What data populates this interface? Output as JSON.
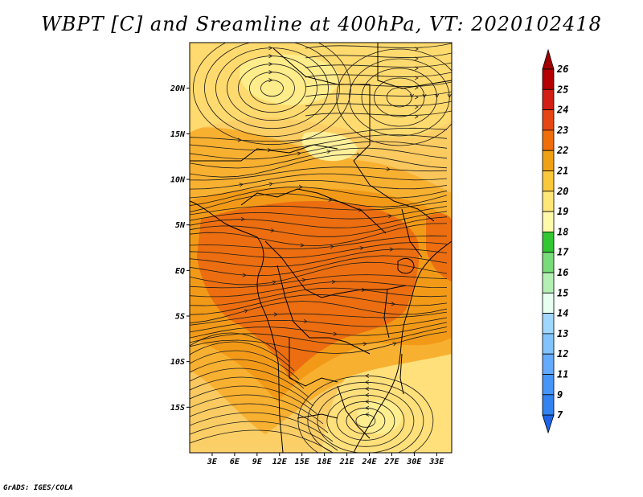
{
  "title": "WBPT [C] and Sreamline at 400hPa, VT: 2020102418",
  "credit": "GrADS: IGES/COLA",
  "map": {
    "lon_range": [
      0,
      35
    ],
    "lat_range": [
      -20,
      25
    ],
    "lat_ticks": [
      {
        "value": 20,
        "label": "20N"
      },
      {
        "value": 15,
        "label": "15N"
      },
      {
        "value": 10,
        "label": "10N"
      },
      {
        "value": 5,
        "label": "5N"
      },
      {
        "value": 0,
        "label": "EQ"
      },
      {
        "value": -5,
        "label": "5S"
      },
      {
        "value": -10,
        "label": "10S"
      },
      {
        "value": -15,
        "label": "15S"
      }
    ],
    "lon_ticks": [
      {
        "value": 3,
        "label": "3E"
      },
      {
        "value": 6,
        "label": "6E"
      },
      {
        "value": 9,
        "label": "9E"
      },
      {
        "value": 12,
        "label": "12E"
      },
      {
        "value": 15,
        "label": "15E"
      },
      {
        "value": 18,
        "label": "18E"
      },
      {
        "value": 21,
        "label": "21E"
      },
      {
        "value": 24,
        "label": "24E"
      },
      {
        "value": 27,
        "label": "27E"
      },
      {
        "value": 30,
        "label": "30E"
      },
      {
        "value": 33,
        "label": "33E"
      }
    ]
  },
  "colorbar": {
    "levels": [
      {
        "label": "7",
        "color": "#1e6ee6"
      },
      {
        "label": "9",
        "color": "#3282f0"
      },
      {
        "label": "11",
        "color": "#4696fa"
      },
      {
        "label": "12",
        "color": "#64aaff"
      },
      {
        "label": "13",
        "color": "#82c3ff"
      },
      {
        "label": "14",
        "color": "#a0d7ff"
      },
      {
        "label": "15",
        "color": "#e6fff0"
      },
      {
        "label": "16",
        "color": "#b4f0b4"
      },
      {
        "label": "17",
        "color": "#78dc78"
      },
      {
        "label": "18",
        "color": "#32c832"
      },
      {
        "label": "19",
        "color": "#fffaaa"
      },
      {
        "label": "20",
        "color": "#ffe678"
      },
      {
        "label": "21",
        "color": "#fac83c"
      },
      {
        "label": "22",
        "color": "#f0a014"
      },
      {
        "label": "23",
        "color": "#f06e0a"
      },
      {
        "label": "24",
        "color": "#e64614"
      },
      {
        "label": "25",
        "color": "#d21e14"
      },
      {
        "label": "26",
        "color": "#b40000"
      }
    ],
    "low_arrow_color": "#1e64e6",
    "high_arrow_color": "#a00000"
  },
  "shading": [
    {
      "lon": 10,
      "lat": 20,
      "level": "19"
    },
    {
      "lon": 25,
      "lat": 15,
      "level": "20"
    },
    {
      "lon": 5,
      "lat": 10,
      "level": "21"
    },
    {
      "lon": 20,
      "lat": 3,
      "level": "23"
    },
    {
      "lon": 8,
      "lat": -2,
      "level": "23"
    },
    {
      "lon": 15,
      "lat": -8,
      "level": "23"
    },
    {
      "lon": 33,
      "lat": 3,
      "level": "23"
    },
    {
      "lon": 27,
      "lat": -10,
      "level": "21"
    },
    {
      "lon": 26,
      "lat": -16,
      "level": "20"
    },
    {
      "lon": 3,
      "lat": -15,
      "level": "21"
    }
  ]
}
